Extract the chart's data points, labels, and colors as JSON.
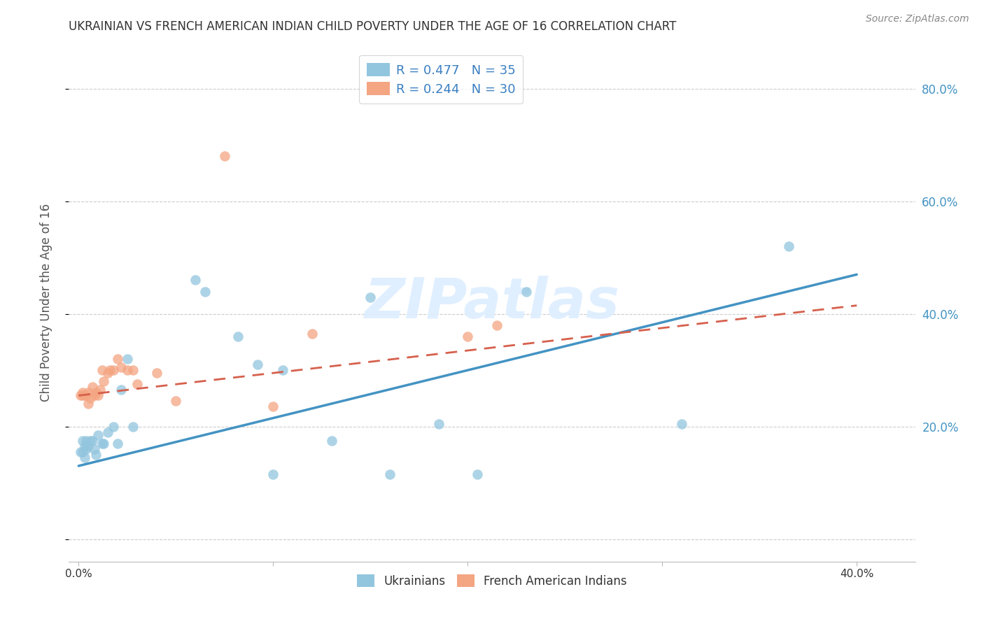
{
  "title": "UKRAINIAN VS FRENCH AMERICAN INDIAN CHILD POVERTY UNDER THE AGE OF 16 CORRELATION CHART",
  "source": "Source: ZipAtlas.com",
  "ylabel": "Child Poverty Under the Age of 16",
  "legend_label1": "R = 0.477   N = 35",
  "legend_label2": "R = 0.244   N = 30",
  "legend_color1": "#92c5de",
  "legend_color2": "#f4a582",
  "line_color1": "#4393c3",
  "line_color2": "#d6604d",
  "watermark_color": "#ddeeff",
  "background_color": "#ffffff",
  "grid_color": "#cccccc",
  "right_tick_color": "#4393c3",
  "title_color": "#333333",
  "xlim": [
    -0.005,
    0.43
  ],
  "ylim": [
    -0.04,
    0.88
  ],
  "x_tick_positions": [
    0.0,
    0.1,
    0.2,
    0.3,
    0.4
  ],
  "x_tick_labels": [
    "0.0%",
    "",
    "",
    "",
    "40.0%"
  ],
  "y_tick_positions": [
    0.0,
    0.2,
    0.4,
    0.6,
    0.8
  ],
  "y_tick_labels_right": [
    "",
    "20.0%",
    "40.0%",
    "60.0%",
    "80.0%"
  ],
  "ukr_line_x": [
    0.0,
    0.4
  ],
  "ukr_line_y": [
    0.13,
    0.47
  ],
  "fai_line_x": [
    0.0,
    0.4
  ],
  "fai_line_y": [
    0.255,
    0.415
  ],
  "ukrainians_x": [
    0.001,
    0.002,
    0.002,
    0.003,
    0.003,
    0.004,
    0.004,
    0.005,
    0.006,
    0.007,
    0.008,
    0.009,
    0.01,
    0.012,
    0.013,
    0.015,
    0.018,
    0.02,
    0.022,
    0.025,
    0.028,
    0.06,
    0.065,
    0.082,
    0.092,
    0.1,
    0.105,
    0.13,
    0.15,
    0.16,
    0.185,
    0.205,
    0.23,
    0.31,
    0.365
  ],
  "ukrainians_y": [
    0.155,
    0.155,
    0.175,
    0.145,
    0.165,
    0.16,
    0.175,
    0.165,
    0.175,
    0.175,
    0.16,
    0.15,
    0.185,
    0.17,
    0.17,
    0.19,
    0.2,
    0.17,
    0.265,
    0.32,
    0.2,
    0.46,
    0.44,
    0.36,
    0.31,
    0.115,
    0.3,
    0.175,
    0.43,
    0.115,
    0.205,
    0.115,
    0.44,
    0.205,
    0.52
  ],
  "french_ai_x": [
    0.001,
    0.002,
    0.002,
    0.003,
    0.004,
    0.005,
    0.005,
    0.006,
    0.007,
    0.008,
    0.009,
    0.01,
    0.011,
    0.012,
    0.013,
    0.015,
    0.016,
    0.018,
    0.02,
    0.022,
    0.025,
    0.028,
    0.03,
    0.04,
    0.075,
    0.1,
    0.12,
    0.2,
    0.215,
    0.05
  ],
  "french_ai_y": [
    0.255,
    0.26,
    0.255,
    0.255,
    0.255,
    0.24,
    0.26,
    0.25,
    0.27,
    0.255,
    0.26,
    0.255,
    0.265,
    0.3,
    0.28,
    0.295,
    0.3,
    0.3,
    0.32,
    0.305,
    0.3,
    0.3,
    0.275,
    0.295,
    0.68,
    0.235,
    0.365,
    0.36,
    0.38,
    0.245
  ]
}
